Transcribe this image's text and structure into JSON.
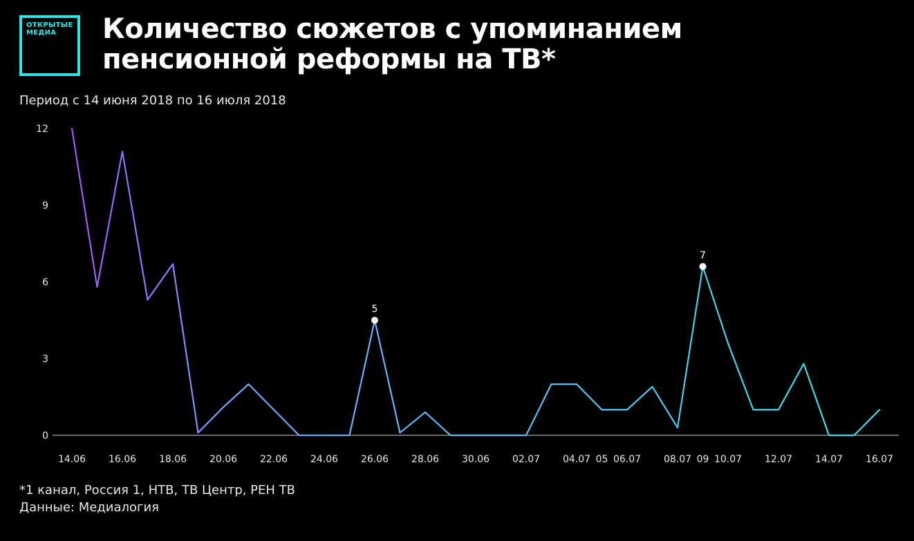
{
  "logo": {
    "line1": "ОТКРЫТЫЕ",
    "line2": "МЕДИА"
  },
  "title": "Количество сюжетов с упоминанием пенсионной реформы на ТВ*",
  "subtitle": "Период с 14 июня 2018 по 16 июля 2018",
  "footnote": {
    "line1": "*1 канал, Россия 1, НТВ, ТВ Центр, РЕН ТВ",
    "line2": "Данные: Медиалогия"
  },
  "colors": {
    "background": "#000000",
    "accent": "#2ee6e6",
    "line_start": "#a855f7",
    "line_mid": "#6fa8ff",
    "line_end": "#40e0e8"
  },
  "chart_data": {
    "type": "line",
    "x": [
      "14.06",
      "15.06",
      "16.06",
      "17.06",
      "18.06",
      "19.06",
      "20.06",
      "21.06",
      "22.06",
      "23.06",
      "24.06",
      "25.06",
      "26.06",
      "27.06",
      "28.06",
      "29.06",
      "30.06",
      "01.07",
      "02.07",
      "03.07",
      "04.07",
      "05.07",
      "06.07",
      "07.07",
      "08.07",
      "09.07",
      "10.07",
      "11.07",
      "12.07",
      "13.07",
      "14.07",
      "15.07",
      "16.07"
    ],
    "values": [
      12,
      5.8,
      11.1,
      5.3,
      6.7,
      0.1,
      1.1,
      2,
      1,
      0,
      0,
      0,
      4.5,
      0.1,
      0.9,
      0,
      0,
      0,
      0,
      2,
      2,
      1,
      1,
      1.9,
      0.3,
      6.6,
      3.6,
      1,
      1,
      2.8,
      0,
      0,
      1
    ],
    "x_tick_labels": [
      "14.06",
      "16.06",
      "18.06",
      "20.06",
      "22.06",
      "24.06",
      "26.06",
      "28.06",
      "30.06",
      "02.07",
      "04.07",
      "05",
      "06.07",
      "08.07",
      "09",
      "10.07",
      "12.07",
      "14.07",
      "16.07"
    ],
    "x_tick_index": [
      0,
      2,
      4,
      6,
      8,
      10,
      12,
      14,
      16,
      18,
      20,
      21,
      22,
      24,
      25,
      26,
      28,
      30,
      32
    ],
    "y_ticks": [
      "0",
      "3",
      "6",
      "9",
      "12"
    ],
    "ylim": [
      0,
      12
    ],
    "annotations": [
      {
        "index": 12,
        "label": "5"
      },
      {
        "index": 25,
        "label": "7"
      }
    ],
    "grid": false,
    "legend": "none"
  }
}
